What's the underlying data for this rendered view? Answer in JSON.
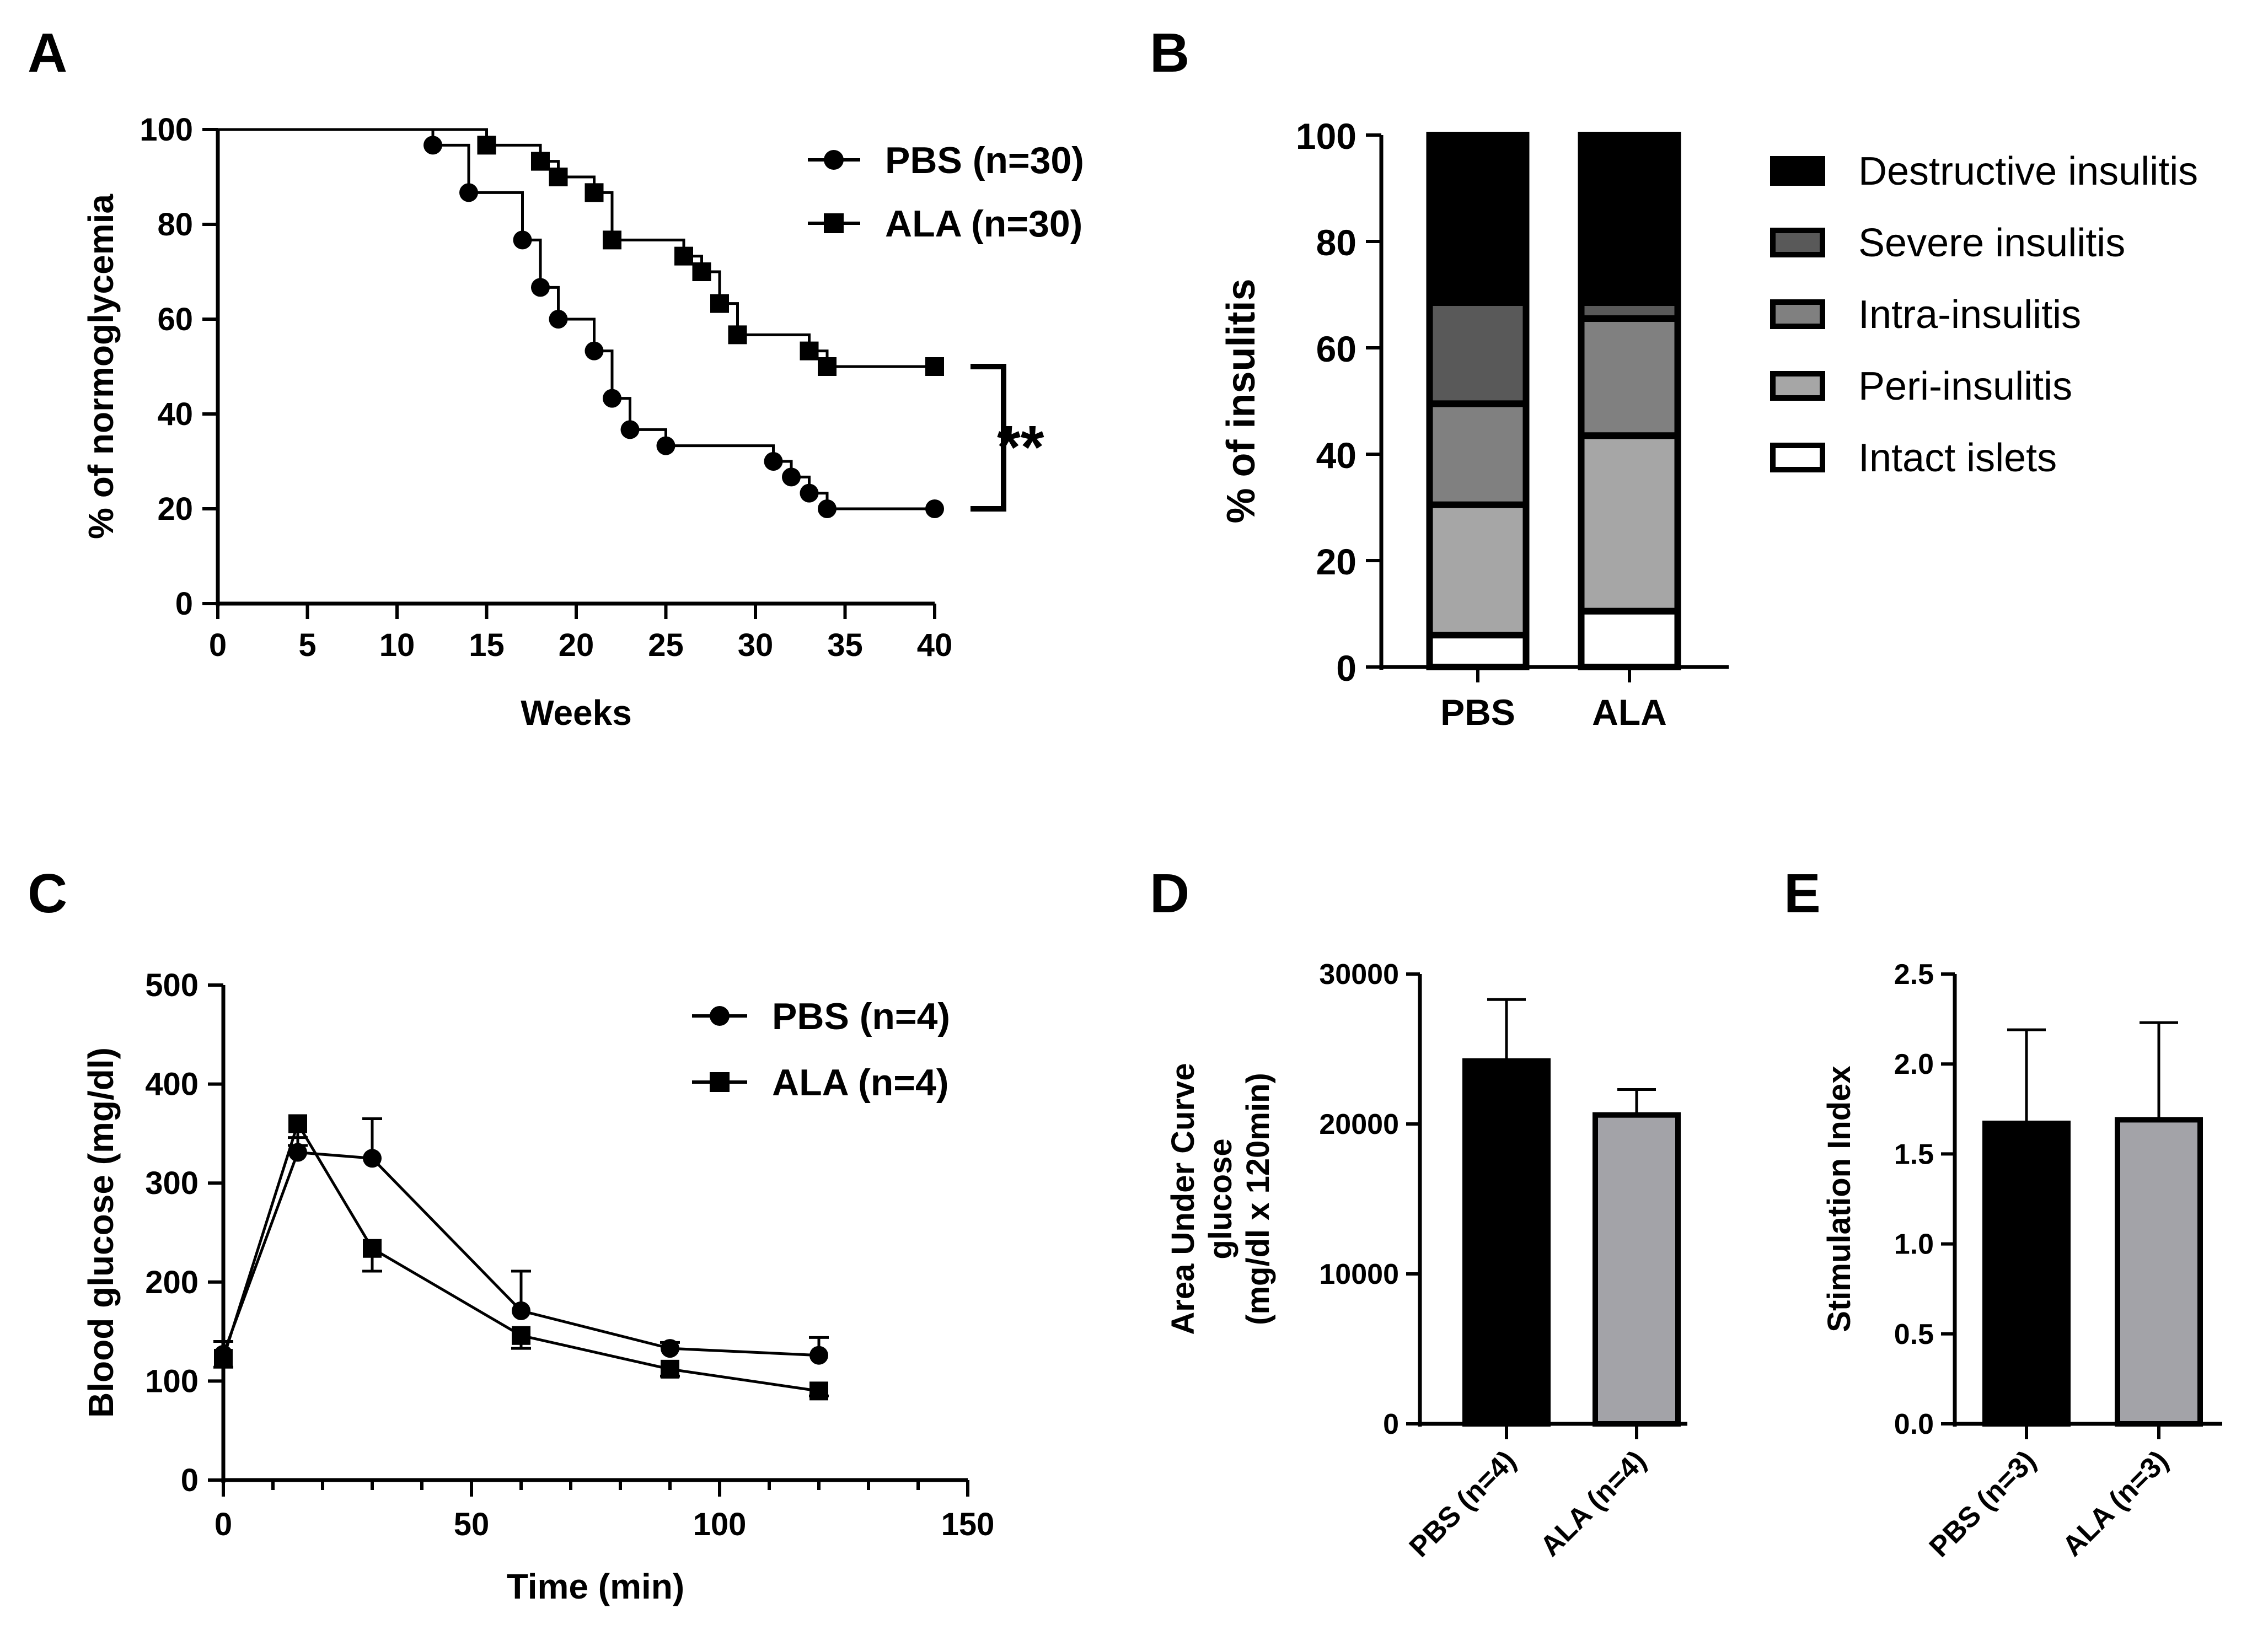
{
  "colors": {
    "black": "#000000",
    "dark_gray": "#595959",
    "mid_gray": "#808080",
    "light_gray": "#a6a6a6",
    "bar_gray": "#a3a3a8",
    "white": "#ffffff"
  },
  "chart_data": [
    {
      "id": "A",
      "panel_label": "A",
      "type": "line",
      "subtype": "survival-step",
      "xlabel": "Weeks",
      "ylabel": "% of normoglycemia",
      "xlim": [
        0,
        40
      ],
      "ylim": [
        0,
        100
      ],
      "xticks": [
        "0",
        "5",
        "10",
        "15",
        "20",
        "25",
        "30",
        "35",
        "40"
      ],
      "yticks": [
        "0",
        "20",
        "40",
        "60",
        "80",
        "100"
      ],
      "legend_position": "top-right",
      "significance": "**",
      "significance_between": [
        20,
        50
      ],
      "series": [
        {
          "name": "PBS (n=30)",
          "marker": "circle",
          "step_x": [
            0,
            12,
            14,
            17,
            18,
            19,
            21,
            22,
            23,
            25,
            31,
            32,
            33,
            34,
            40
          ],
          "step_y": [
            100,
            96.7,
            86.7,
            76.7,
            66.7,
            60,
            53.3,
            43.3,
            36.7,
            33.3,
            30,
            26.7,
            23.3,
            20,
            20
          ],
          "marker_x": [
            12,
            14,
            17,
            18,
            19,
            21,
            22,
            23,
            25,
            31,
            32,
            33,
            34,
            40
          ],
          "marker_y": [
            96.7,
            86.7,
            76.7,
            66.7,
            60,
            53.3,
            43.3,
            36.7,
            33.3,
            30,
            26.7,
            23.3,
            20,
            20
          ]
        },
        {
          "name": "ALA (n=30)",
          "marker": "square",
          "step_x": [
            0,
            15,
            18,
            19,
            21,
            22,
            26,
            27,
            28,
            29,
            33,
            34,
            40
          ],
          "step_y": [
            100,
            96.7,
            93.3,
            90,
            86.7,
            76.7,
            73.3,
            70,
            63.3,
            56.7,
            53.3,
            50,
            50
          ],
          "marker_x": [
            15,
            18,
            19,
            21,
            22,
            26,
            27,
            28,
            29,
            33,
            34,
            40
          ],
          "marker_y": [
            96.7,
            93.3,
            90,
            86.7,
            76.7,
            73.3,
            70,
            63.3,
            56.7,
            53.3,
            50,
            50
          ]
        }
      ]
    },
    {
      "id": "B",
      "panel_label": "B",
      "type": "bar",
      "subtype": "stacked-100",
      "xlabel": "",
      "ylabel": "% of insulitis",
      "ylim": [
        0,
        100
      ],
      "yticks": [
        "0",
        "20",
        "40",
        "60",
        "80",
        "100"
      ],
      "categories": [
        "PBS",
        "ALA"
      ],
      "legend_position": "right",
      "series": [
        {
          "name": "Intact islets",
          "color_key": "white",
          "values": [
            6,
            10.5
          ]
        },
        {
          "name": "Peri-insulitis",
          "color_key": "light_gray",
          "values": [
            24.5,
            33
          ]
        },
        {
          "name": "Intra-insulitis",
          "color_key": "mid_gray",
          "values": [
            19,
            22
          ]
        },
        {
          "name": "Severe insulitis",
          "color_key": "dark_gray",
          "values": [
            19,
            3
          ]
        },
        {
          "name": "Destructive insulitis",
          "color_key": "black",
          "values": [
            31.5,
            31.5
          ]
        }
      ],
      "legend_order": [
        "Destructive insulitis",
        "Severe insulitis",
        "Intra-insulitis",
        "Peri-insulitis",
        "Intact islets"
      ]
    },
    {
      "id": "C",
      "panel_label": "C",
      "type": "line",
      "xlabel": "Time (min)",
      "ylabel": "Blood glucose (mg/dl)",
      "xlim": [
        0,
        150
      ],
      "ylim": [
        0,
        500
      ],
      "xticks": [
        "0",
        "50",
        "100",
        "150"
      ],
      "yticks": [
        "0",
        "100",
        "200",
        "300",
        "400",
        "500"
      ],
      "legend_position": "top-right",
      "x": [
        0,
        15,
        30,
        60,
        90,
        120
      ],
      "series": [
        {
          "name": "PBS (n=4)",
          "marker": "circle",
          "values": [
            127,
            331,
            325,
            171,
            133,
            126
          ],
          "errors": [
            13,
            15,
            40,
            40,
            6,
            18
          ]
        },
        {
          "name": "ALA (n=4)",
          "marker": "square",
          "values": [
            123,
            360,
            234,
            146,
            112,
            90
          ],
          "errors": [
            9,
            22,
            23,
            13,
            7,
            5
          ]
        }
      ]
    },
    {
      "id": "D",
      "panel_label": "D",
      "type": "bar",
      "xlabel": "",
      "ylabel_lines": [
        "Area Under Curve",
        "glucose",
        "(mg/dl x 120min)"
      ],
      "ylim": [
        0,
        30000
      ],
      "yticks": [
        "0",
        "10000",
        "20000",
        "30000"
      ],
      "categories": [
        "PBS (n=4)",
        "ALA (n=4)"
      ],
      "values": [
        24200,
        20600
      ],
      "errors": [
        4100,
        1700
      ],
      "color_keys": [
        "black",
        "bar_gray"
      ]
    },
    {
      "id": "E",
      "panel_label": "E",
      "type": "bar",
      "xlabel": "",
      "ylabel": "Stimulation Index",
      "ylim": [
        0,
        2.5
      ],
      "yticks": [
        "0.0",
        "0.5",
        "1.0",
        "1.5",
        "2.0",
        "2.5"
      ],
      "categories": [
        "PBS (n=3)",
        "ALA (n=3)"
      ],
      "values": [
        1.67,
        1.69
      ],
      "errors": [
        0.52,
        0.54
      ],
      "color_keys": [
        "black",
        "bar_gray"
      ]
    }
  ]
}
